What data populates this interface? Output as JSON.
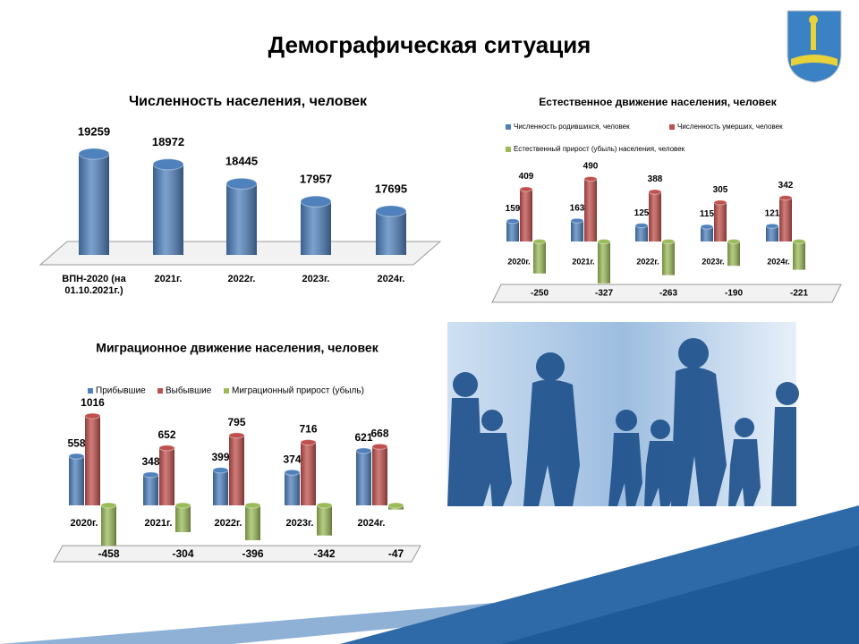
{
  "title": "Демографическая ситуация",
  "chart_data": [
    {
      "type": "bar",
      "title": "Численность  населения, человек",
      "categories": [
        "ВПН-2020 (на 01.10.2021г.)",
        "2021г.",
        "2022г.",
        "2023г.",
        "2024г."
      ],
      "values": [
        19259,
        18972,
        18445,
        17957,
        17695
      ],
      "color": "#4f81bd"
    },
    {
      "type": "grouped-bar",
      "title": "Естественное движение населения, человек",
      "categories": [
        "2020г.",
        "2021г.",
        "2022г.",
        "2023г.",
        "2024г."
      ],
      "series": [
        {
          "name": "Численность родившихся, человек",
          "color": "#4f81bd",
          "values": [
            159,
            163,
            125,
            115,
            121
          ]
        },
        {
          "name": "Численность умерших, человек",
          "color": "#c0504d",
          "values": [
            409,
            490,
            388,
            305,
            342
          ]
        },
        {
          "name": "Естественный прирост (убыль) населения, человек",
          "color": "#9bbb59",
          "values": [
            -250,
            -327,
            -263,
            -190,
            -221
          ]
        }
      ]
    },
    {
      "type": "grouped-bar",
      "title": "Миграционное движение населения, человек",
      "categories": [
        "2020г.",
        "2021г.",
        "2022г.",
        "2023г.",
        "2024г."
      ],
      "series": [
        {
          "name": "Прибывшие",
          "color": "#4f81bd",
          "values": [
            558,
            348,
            399,
            374,
            621
          ]
        },
        {
          "name": "Выбывшие",
          "color": "#c0504d",
          "values": [
            1016,
            652,
            795,
            716,
            668
          ]
        },
        {
          "name": "Миграционный прирост (убыль)",
          "color": "#9bbb59",
          "values": [
            -458,
            -304,
            -396,
            -342,
            -47
          ]
        }
      ]
    }
  ]
}
